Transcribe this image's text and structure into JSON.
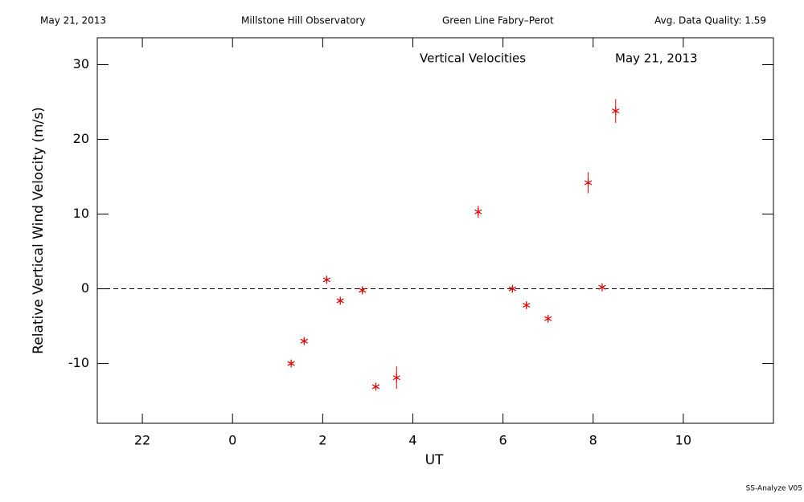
{
  "header": {
    "date": "May 21, 2013",
    "site": "Millstone Hill Observatory",
    "instrument": "Green Line Fabry–Perot",
    "quality": "Avg. Data Quality: 1.59"
  },
  "footer": "SS-Analyze V05",
  "chart_data": {
    "type": "scatter",
    "annotations": [
      "Vertical Velocities",
      "May 21, 2013"
    ],
    "x_label": "UT",
    "y_label": "Relative Vertical Wind Velocity (m/s)",
    "xlim": [
      -3,
      12
    ],
    "xticks": [
      {
        "value": -2,
        "label": "22"
      },
      0,
      2,
      4,
      6,
      8,
      10
    ],
    "ylim": [
      -18,
      33.6
    ],
    "yticks": [
      -10,
      0,
      10,
      20,
      30
    ],
    "hline": 0,
    "series": [
      {
        "color": "#e00000",
        "x": [
          1.3,
          1.59,
          2.09,
          2.39,
          2.88,
          3.18,
          3.64,
          5.45,
          6.21,
          6.52,
          7.0,
          7.89,
          8.2,
          8.5
        ],
        "values": [
          -10.0,
          -7.0,
          1.2,
          -1.6,
          -0.2,
          -13.1,
          -11.9,
          10.3,
          0.0,
          -2.2,
          -4.0,
          14.2,
          0.2,
          23.8
        ],
        "errors": [
          0.4,
          0.4,
          0.5,
          0.4,
          0.4,
          0.5,
          1.5,
          0.8,
          0.4,
          0.4,
          0.4,
          1.4,
          0.4,
          1.6
        ]
      }
    ]
  }
}
